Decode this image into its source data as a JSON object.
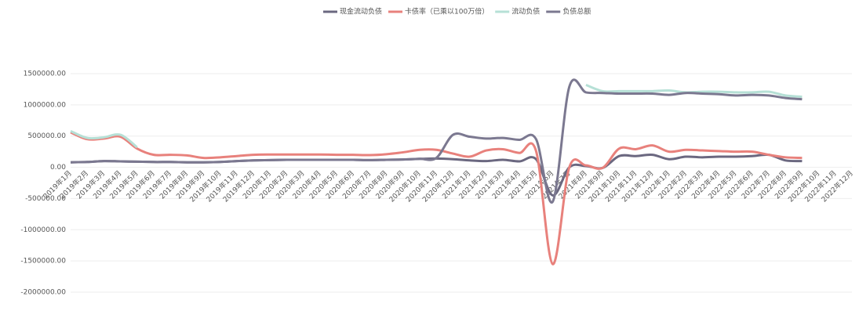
{
  "chart_data": {
    "type": "line",
    "categories": [
      "2019年1月",
      "2019年2月",
      "2019年3月",
      "2019年4月",
      "2019年5月",
      "2019年6月",
      "2019年7月",
      "2019年8月",
      "2019年9月",
      "2019年10月",
      "2019年11月",
      "2019年12月",
      "2020年1月",
      "2020年2月",
      "2020年3月",
      "2020年4月",
      "2020年5月",
      "2020年6月",
      "2020年7月",
      "2020年8月",
      "2020年9月",
      "2020年10月",
      "2020年11月",
      "2020年12月",
      "2021年1月",
      "2021年2月",
      "2021年3月",
      "2021年4月",
      "2021年5月",
      "2021年6月",
      "2021年7月",
      "2021年8月",
      "2021年9月",
      "2021年10月",
      "2021年11月",
      "2021年12月",
      "2022年1月",
      "2022年2月",
      "2022年3月",
      "2022年4月",
      "2022年5月",
      "2022年6月",
      "2022年7月",
      "2022年8月",
      "2022年9月",
      "2022年10月",
      "2022年11月",
      "2022年12月"
    ],
    "series": [
      {
        "name": "现金流动负债",
        "color": "#6b6880",
        "values": [
          80000,
          85000,
          100000,
          95000,
          90000,
          85000,
          85000,
          80000,
          80000,
          85000,
          100000,
          110000,
          115000,
          120000,
          120000,
          120000,
          120000,
          120000,
          115000,
          120000,
          125000,
          135000,
          140000,
          130000,
          110000,
          100000,
          120000,
          95000,
          130000,
          -450000,
          0,
          20000,
          -10000,
          180000,
          180000,
          200000,
          130000,
          170000,
          160000,
          170000,
          170000,
          180000,
          200000,
          110000,
          100000,
          null,
          null,
          null
        ]
      },
      {
        "name": "卡债率（已乘以100万倍）",
        "color": "#e8817c",
        "values": [
          560000,
          450000,
          460000,
          490000,
          300000,
          200000,
          200000,
          190000,
          150000,
          160000,
          180000,
          200000,
          205000,
          205000,
          205000,
          205000,
          200000,
          200000,
          195000,
          210000,
          240000,
          280000,
          280000,
          220000,
          170000,
          270000,
          290000,
          230000,
          260000,
          -1550000,
          0,
          30000,
          -10000,
          300000,
          290000,
          350000,
          250000,
          280000,
          270000,
          260000,
          250000,
          250000,
          200000,
          160000,
          150000,
          null,
          null,
          null
        ]
      },
      {
        "name": "流动负债",
        "color": "#b6e0d6",
        "values": [
          580000,
          470000,
          480000,
          520000,
          320000,
          null,
          null,
          null,
          null,
          null,
          null,
          null,
          null,
          null,
          null,
          null,
          null,
          null,
          null,
          null,
          null,
          null,
          null,
          null,
          null,
          null,
          null,
          null,
          null,
          null,
          null,
          1320000,
          1220000,
          1220000,
          1220000,
          1220000,
          1230000,
          1200000,
          1210000,
          1210000,
          1200000,
          1200000,
          1210000,
          1150000,
          1130000,
          null,
          null,
          null
        ]
      },
      {
        "name": "负债总额",
        "color": "#7b7890",
        "values": [
          80000,
          85000,
          100000,
          95000,
          90000,
          85000,
          85000,
          80000,
          80000,
          85000,
          100000,
          110000,
          115000,
          120000,
          120000,
          120000,
          120000,
          120000,
          115000,
          120000,
          125000,
          135000,
          150000,
          520000,
          490000,
          460000,
          470000,
          440000,
          450000,
          -550000,
          1290000,
          1200000,
          1190000,
          1180000,
          1180000,
          1180000,
          1160000,
          1190000,
          1180000,
          1170000,
          1150000,
          1160000,
          1150000,
          1110000,
          1090000,
          null,
          null,
          null
        ]
      }
    ],
    "ylim": [
      -2000000,
      1500000
    ],
    "yticks": [
      {
        "value": -2000000,
        "label": "-2000000.00"
      },
      {
        "value": -1500000,
        "label": "-1500000.00"
      },
      {
        "value": -1000000,
        "label": "-1000000.00"
      },
      {
        "value": -500000,
        "label": "-500000.00"
      },
      {
        "value": 0,
        "label": "0.00"
      },
      {
        "value": 500000,
        "label": "500000.00"
      },
      {
        "value": 1000000,
        "label": "1000000.00"
      },
      {
        "value": 1500000,
        "label": "1500000.00"
      }
    ],
    "grid": true
  }
}
